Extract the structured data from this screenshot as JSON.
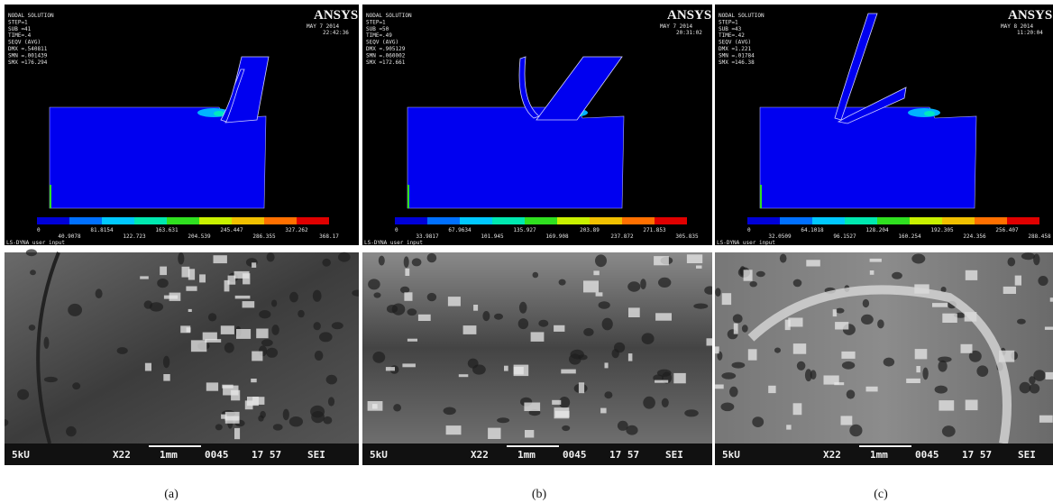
{
  "panels": [
    {
      "simulation": {
        "header": [
          "NODAL SOLUTION",
          "STEP=1",
          "SUB =41",
          "TIME=.4",
          "SEQV     (AVG)",
          "DMX =.540811",
          "SMN =.001439",
          "SMX =176.294"
        ],
        "logo": "ANSYS",
        "date": "MAY  7 2014",
        "time": "22:42:36",
        "legend_top": [
          "0",
          "81.8154",
          "163.631",
          "245.447",
          "327.262"
        ],
        "legend_bottom": [
          "40.9078",
          "122.723",
          "204.539",
          "286.355",
          "368.17"
        ],
        "footer": "LS-DYNA user input"
      },
      "micrograph": {
        "voltage": "5kU",
        "magnification": "X22",
        "scale": "1mm",
        "number": "0045",
        "code": "17 57",
        "detector": "SEI"
      },
      "caption": "(a)"
    },
    {
      "simulation": {
        "header": [
          "NODAL SOLUTION",
          "STEP=1",
          "SUB =50",
          "TIME=.49",
          "SEQV     (AVG)",
          "DMX =.905129",
          "SMN =.060002",
          "SMX =172.661"
        ],
        "logo": "ANSYS",
        "date": "MAY  7 2014",
        "time": "20:31:02",
        "legend_top": [
          "0",
          "67.9634",
          "135.927",
          "203.89",
          "271.853"
        ],
        "legend_bottom": [
          "33.9817",
          "101.945",
          "169.908",
          "237.872",
          "305.835"
        ],
        "footer": "LS-DYNA user input"
      },
      "micrograph": {
        "voltage": "5kU",
        "magnification": "X22",
        "scale": "1mm",
        "number": "0045",
        "code": "17 57",
        "detector": "SEI"
      },
      "caption": "(b)"
    },
    {
      "simulation": {
        "header": [
          "NODAL SOLUTION",
          "STEP=1",
          "SUB =43",
          "TIME=.42",
          "SEQV     (AVG)",
          "DMX =1.221",
          "SMN =.01784",
          "SMX =146.38"
        ],
        "logo": "ANSYS",
        "date": "MAY  8 2014",
        "time": "11:20:04",
        "legend_top": [
          "0",
          "64.1018",
          "128.204",
          "192.305",
          "256.407"
        ],
        "legend_bottom": [
          "32.0509",
          "96.1527",
          "160.254",
          "224.356",
          "288.458"
        ],
        "footer": "LS-DYNA user input"
      },
      "micrograph": {
        "voltage": "5kU",
        "magnification": "X22",
        "scale": "1mm",
        "number": "0045",
        "code": "17 57",
        "detector": "SEI"
      },
      "caption": "(c)"
    }
  ]
}
